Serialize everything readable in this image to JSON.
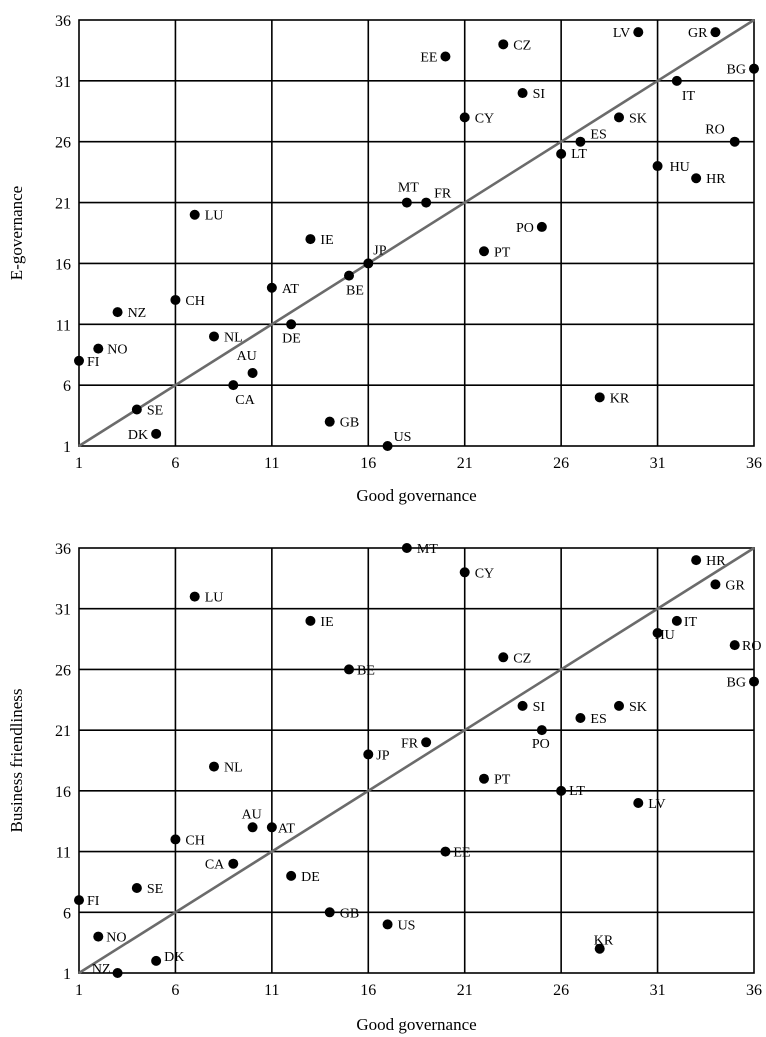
{
  "chart_data": [
    {
      "type": "scatter",
      "title": "",
      "xlabel": "Good governance",
      "ylabel": "E-governance",
      "xlim": [
        1,
        36
      ],
      "ylim": [
        1,
        36
      ],
      "xticks": [
        1,
        6,
        11,
        16,
        21,
        26,
        31,
        36
      ],
      "yticks": [
        1,
        6,
        11,
        16,
        21,
        26,
        31,
        36
      ],
      "grid": true,
      "diagonal_line": true,
      "points": [
        {
          "label": "FI",
          "x": 1,
          "y": 8
        },
        {
          "label": "NO",
          "x": 2,
          "y": 9
        },
        {
          "label": "NZ",
          "x": 3,
          "y": 12
        },
        {
          "label": "SE",
          "x": 4,
          "y": 4
        },
        {
          "label": "DK",
          "x": 5,
          "y": 2
        },
        {
          "label": "CH",
          "x": 6,
          "y": 13
        },
        {
          "label": "LU",
          "x": 7,
          "y": 20
        },
        {
          "label": "NL",
          "x": 8,
          "y": 10
        },
        {
          "label": "CA",
          "x": 9,
          "y": 6
        },
        {
          "label": "AU",
          "x": 10,
          "y": 7
        },
        {
          "label": "AT",
          "x": 11,
          "y": 14
        },
        {
          "label": "DE",
          "x": 12,
          "y": 11
        },
        {
          "label": "IE",
          "x": 13,
          "y": 18
        },
        {
          "label": "GB",
          "x": 14,
          "y": 3
        },
        {
          "label": "BE",
          "x": 15,
          "y": 15
        },
        {
          "label": "JP",
          "x": 16,
          "y": 16
        },
        {
          "label": "US",
          "x": 17,
          "y": 1
        },
        {
          "label": "MT",
          "x": 18,
          "y": 21
        },
        {
          "label": "FR",
          "x": 19,
          "y": 21
        },
        {
          "label": "EE",
          "x": 20,
          "y": 33
        },
        {
          "label": "CY",
          "x": 21,
          "y": 28
        },
        {
          "label": "PT",
          "x": 22,
          "y": 17
        },
        {
          "label": "CZ",
          "x": 23,
          "y": 34
        },
        {
          "label": "SI",
          "x": 24,
          "y": 30
        },
        {
          "label": "PO",
          "x": 25,
          "y": 19
        },
        {
          "label": "LT",
          "x": 26,
          "y": 25
        },
        {
          "label": "ES",
          "x": 27,
          "y": 26
        },
        {
          "label": "KR",
          "x": 28,
          "y": 5
        },
        {
          "label": "SK",
          "x": 29,
          "y": 28
        },
        {
          "label": "LV",
          "x": 30,
          "y": 35
        },
        {
          "label": "HU",
          "x": 31,
          "y": 24
        },
        {
          "label": "IT",
          "x": 32,
          "y": 31
        },
        {
          "label": "HR",
          "x": 33,
          "y": 23
        },
        {
          "label": "GR",
          "x": 34,
          "y": 35
        },
        {
          "label": "RO",
          "x": 35,
          "y": 26
        },
        {
          "label": "BG",
          "x": 36,
          "y": 32
        }
      ]
    },
    {
      "type": "scatter",
      "title": "",
      "xlabel": "Good governance",
      "ylabel": "Business friendliness",
      "xlim": [
        1,
        36
      ],
      "ylim": [
        1,
        36
      ],
      "xticks": [
        1,
        6,
        11,
        16,
        21,
        26,
        31,
        36
      ],
      "yticks": [
        1,
        6,
        11,
        16,
        21,
        26,
        31,
        36
      ],
      "grid": true,
      "diagonal_line": true,
      "points": [
        {
          "label": "FI",
          "x": 1,
          "y": 7
        },
        {
          "label": "NO",
          "x": 2,
          "y": 4
        },
        {
          "label": "NZ",
          "x": 3,
          "y": 1
        },
        {
          "label": "SE",
          "x": 4,
          "y": 8
        },
        {
          "label": "DK",
          "x": 5,
          "y": 2
        },
        {
          "label": "CH",
          "x": 6,
          "y": 12
        },
        {
          "label": "LU",
          "x": 7,
          "y": 32
        },
        {
          "label": "NL",
          "x": 8,
          "y": 18
        },
        {
          "label": "CA",
          "x": 9,
          "y": 10
        },
        {
          "label": "AU",
          "x": 10,
          "y": 13
        },
        {
          "label": "AT",
          "x": 11,
          "y": 13
        },
        {
          "label": "DE",
          "x": 12,
          "y": 9
        },
        {
          "label": "IE",
          "x": 13,
          "y": 30
        },
        {
          "label": "GB",
          "x": 14,
          "y": 6
        },
        {
          "label": "BE",
          "x": 15,
          "y": 26
        },
        {
          "label": "JP",
          "x": 16,
          "y": 19
        },
        {
          "label": "US",
          "x": 17,
          "y": 5
        },
        {
          "label": "MT",
          "x": 18,
          "y": 36
        },
        {
          "label": "FR",
          "x": 19,
          "y": 20
        },
        {
          "label": "EE",
          "x": 20,
          "y": 11
        },
        {
          "label": "CY",
          "x": 21,
          "y": 34
        },
        {
          "label": "PT",
          "x": 22,
          "y": 17
        },
        {
          "label": "CZ",
          "x": 23,
          "y": 27
        },
        {
          "label": "SI",
          "x": 24,
          "y": 23
        },
        {
          "label": "PO",
          "x": 25,
          "y": 21
        },
        {
          "label": "LT",
          "x": 26,
          "y": 16
        },
        {
          "label": "ES",
          "x": 27,
          "y": 22
        },
        {
          "label": "KR",
          "x": 28,
          "y": 3
        },
        {
          "label": "SK",
          "x": 29,
          "y": 23
        },
        {
          "label": "LV",
          "x": 30,
          "y": 15
        },
        {
          "label": "HU",
          "x": 31,
          "y": 29
        },
        {
          "label": "IT",
          "x": 32,
          "y": 30
        },
        {
          "label": "HR",
          "x": 33,
          "y": 35
        },
        {
          "label": "GR",
          "x": 34,
          "y": 33
        },
        {
          "label": "RO",
          "x": 35,
          "y": 28
        },
        {
          "label": "BG",
          "x": 36,
          "y": 25
        }
      ]
    }
  ]
}
